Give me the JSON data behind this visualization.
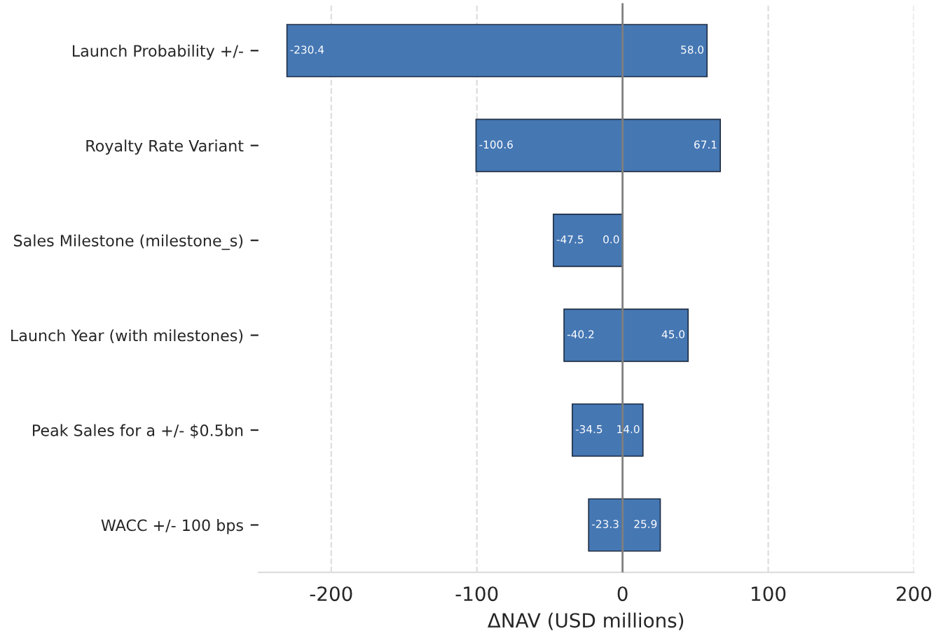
{
  "chart_data": {
    "type": "bar",
    "orientation": "horizontal",
    "stacked": true,
    "xlabel": "ΔNAV (USD millions)",
    "categories": [
      "Launch Probability +/-",
      "Royalty Rate Variant",
      "Sales Milestone (milestone_s)",
      "Launch Year (with milestones)",
      "Peak Sales for a +/- $0.5bn",
      "WACC +/- 100 bps"
    ],
    "series": [
      {
        "color": "#4577b3",
        "values": [
          -230.4,
          -100.6,
          -47.5,
          -40.2,
          -34.5,
          -23.3
        ],
        "value_labels": [
          "-230.4",
          "-100.6",
          "-47.5",
          "-40.2",
          "-34.5",
          "-23.3"
        ]
      },
      {
        "color": "#4577b3",
        "values": [
          58.0,
          67.1,
          0.0,
          45.0,
          14.0,
          25.9
        ],
        "value_labels": [
          "58.0",
          "67.1",
          "0.0",
          "45.0",
          "14.0",
          "25.9"
        ]
      }
    ],
    "xlim": [
      -250,
      200
    ],
    "xticks": [
      -200,
      -100,
      0,
      100,
      200
    ],
    "grid": "x",
    "ref_lines": [
      {
        "axis": "x",
        "value": 0,
        "color": "#808080"
      }
    ]
  }
}
